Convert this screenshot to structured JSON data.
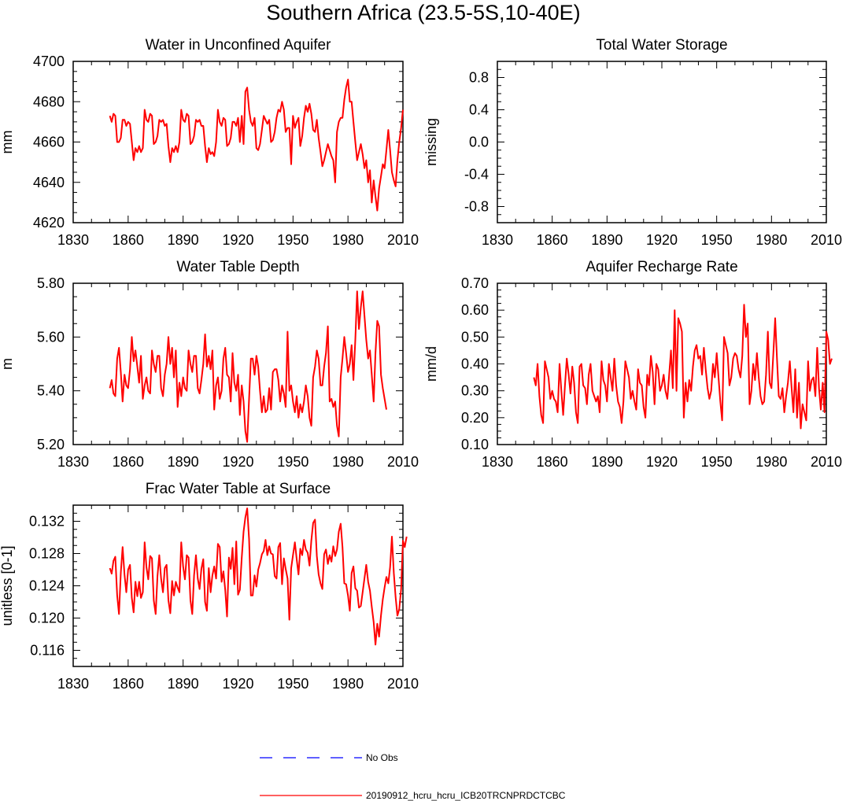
{
  "figure": {
    "title": "Southern Africa (23.5-5S,10-40E)"
  },
  "legend": {
    "entries": [
      {
        "label": "No Obs",
        "color": "#0000ff",
        "style": "dashed"
      },
      {
        "label": "20190912_hcru_hcru_ICB20TRCNPRDCTCBC",
        "color": "#ff0000",
        "style": "solid"
      }
    ]
  },
  "chart_data": [
    {
      "type": "line",
      "title": "Water in Unconfined Aquifer",
      "xlabel": "",
      "ylabel": "mm",
      "xlim": [
        1830,
        2010
      ],
      "ylim": [
        4620,
        4700
      ],
      "xticks": [
        1830,
        1860,
        1890,
        1920,
        1950,
        1980,
        2010
      ],
      "yticks": [
        4620,
        4640,
        4660,
        4680,
        4700
      ],
      "ytick_labels": [
        "4620",
        "4640",
        "4660",
        "4680",
        "4700"
      ],
      "series": [
        {
          "name": "20190912_hcru_hcru_ICB20TRCNPRDCTCBC",
          "color": "#ff0000",
          "x_start": 1850,
          "x_step": 1,
          "values": [
            4673,
            4670,
            4674,
            4673,
            4660,
            4660,
            4662,
            4671,
            4671,
            4668,
            4670,
            4669,
            4660,
            4651,
            4657,
            4655,
            4658,
            4655,
            4657,
            4676,
            4671,
            4670,
            4674,
            4673,
            4659,
            4660,
            4663,
            4671,
            4670,
            4671,
            4668,
            4669,
            4658,
            4650,
            4657,
            4655,
            4658,
            4655,
            4660,
            4676,
            4671,
            4670,
            4674,
            4673,
            4659,
            4660,
            4663,
            4671,
            4670,
            4671,
            4668,
            4668,
            4658,
            4650,
            4657,
            4654,
            4655,
            4653,
            4660,
            4676,
            4670,
            4668,
            4672,
            4671,
            4658,
            4659,
            4662,
            4670,
            4670,
            4668,
            4672,
            4660,
            4673,
            4659,
            4685,
            4687,
            4676,
            4670,
            4668,
            4672,
            4657,
            4656,
            4659,
            4666,
            4673,
            4671,
            4669,
            4671,
            4660,
            4661,
            4665,
            4672,
            4676,
            4675,
            4680,
            4676,
            4665,
            4667,
            4667,
            4649,
            4673,
            4667,
            4670,
            4672,
            4658,
            4663,
            4672,
            4678,
            4675,
            4679,
            4674,
            4666,
            4665,
            4671,
            4662,
            4655,
            4648,
            4651,
            4655,
            4659,
            4656,
            4653,
            4651,
            4640,
            4665,
            4670,
            4672,
            4672,
            4681,
            4687,
            4691,
            4680,
            4680,
            4670,
            4660,
            4651,
            4655,
            4659,
            4654,
            4647,
            4651,
            4640,
            4646,
            4630,
            4641,
            4633,
            4626,
            4637,
            4643,
            4649,
            4647,
            4656,
            4666,
            4656,
            4645,
            4641,
            4638,
            4651,
            4660,
            4667,
            4676
          ]
        }
      ]
    },
    {
      "type": "line",
      "title": "Total Water Storage",
      "xlabel": "",
      "ylabel": "missing",
      "xlim": [
        1830,
        2010
      ],
      "ylim": [
        -1.0,
        1.0
      ],
      "xticks": [
        1830,
        1860,
        1890,
        1920,
        1950,
        1980,
        2010
      ],
      "yticks": [
        -0.8,
        -0.4,
        0.0,
        0.4,
        0.8
      ],
      "ytick_labels": [
        "-0.8",
        "-0.4",
        "0.0",
        "0.4",
        "0.8"
      ],
      "series": []
    },
    {
      "type": "line",
      "title": "Water Table Depth",
      "xlabel": "",
      "ylabel": "m",
      "xlim": [
        1830,
        2010
      ],
      "ylim": [
        5.2,
        5.8
      ],
      "xticks": [
        1830,
        1860,
        1890,
        1920,
        1950,
        1980,
        2010
      ],
      "yticks": [
        5.2,
        5.4,
        5.6,
        5.8
      ],
      "ytick_labels": [
        "5.20",
        "5.40",
        "5.60",
        "5.80"
      ],
      "series": [
        {
          "name": "20190912_hcru_hcru_ICB20TRCNPRDCTCBC",
          "color": "#ff0000",
          "x_start": 1850,
          "x_step": 1,
          "values": [
            5.41,
            5.44,
            5.39,
            5.38,
            5.52,
            5.56,
            5.47,
            5.36,
            5.46,
            5.42,
            5.41,
            5.48,
            5.6,
            5.51,
            5.55,
            5.49,
            5.43,
            5.53,
            5.37,
            5.42,
            5.45,
            5.4,
            5.39,
            5.55,
            5.5,
            5.47,
            5.53,
            5.53,
            5.41,
            5.38,
            5.46,
            5.5,
            5.6,
            5.5,
            5.56,
            5.45,
            5.55,
            5.34,
            5.43,
            5.38,
            5.45,
            5.41,
            5.4,
            5.55,
            5.5,
            5.47,
            5.53,
            5.53,
            5.41,
            5.39,
            5.44,
            5.5,
            5.61,
            5.49,
            5.53,
            5.48,
            5.55,
            5.33,
            5.42,
            5.45,
            5.37,
            5.4,
            5.52,
            5.56,
            5.46,
            5.45,
            5.36,
            5.54,
            5.43,
            5.4,
            5.46,
            5.31,
            5.42,
            5.36,
            5.25,
            5.21,
            5.37,
            5.52,
            5.52,
            5.46,
            5.53,
            5.49,
            5.4,
            5.32,
            5.38,
            5.32,
            5.33,
            5.41,
            5.33,
            5.47,
            5.48,
            5.48,
            5.44,
            5.36,
            5.42,
            5.39,
            5.34,
            5.62,
            5.4,
            5.42,
            5.36,
            5.32,
            5.38,
            5.3,
            5.35,
            5.32,
            5.36,
            5.42,
            5.38,
            5.3,
            5.27,
            5.45,
            5.49,
            5.55,
            5.52,
            5.42,
            5.42,
            5.49,
            5.54,
            5.64,
            5.36,
            5.37,
            5.34,
            5.36,
            5.27,
            5.23,
            5.45,
            5.52,
            5.6,
            5.54,
            5.47,
            5.5,
            5.57,
            5.44,
            5.59,
            5.77,
            5.63,
            5.71,
            5.77,
            5.68,
            5.59,
            5.52,
            5.55,
            5.46,
            5.36,
            5.54,
            5.66,
            5.64,
            5.46,
            5.41,
            5.37,
            5.33
          ]
        }
      ]
    },
    {
      "type": "line",
      "title": "Aquifer Recharge Rate",
      "xlabel": "",
      "ylabel": "mm/d",
      "xlim": [
        1830,
        2010
      ],
      "ylim": [
        0.1,
        0.7
      ],
      "xticks": [
        1830,
        1860,
        1890,
        1920,
        1950,
        1980,
        2010
      ],
      "yticks": [
        0.1,
        0.2,
        0.3,
        0.4,
        0.5,
        0.6,
        0.7
      ],
      "ytick_labels": [
        "0.10",
        "0.20",
        "0.30",
        "0.40",
        "0.50",
        "0.60",
        "0.70"
      ],
      "series": [
        {
          "name": "20190912_hcru_hcru_ICB20TRCNPRDCTCBC",
          "color": "#ff0000",
          "x_start": 1850,
          "x_step": 1,
          "values": [
            0.35,
            0.32,
            0.4,
            0.28,
            0.21,
            0.18,
            0.41,
            0.38,
            0.35,
            0.27,
            0.3,
            0.27,
            0.26,
            0.22,
            0.4,
            0.3,
            0.21,
            0.32,
            0.42,
            0.36,
            0.29,
            0.39,
            0.33,
            0.22,
            0.18,
            0.39,
            0.4,
            0.32,
            0.31,
            0.25,
            0.36,
            0.4,
            0.3,
            0.28,
            0.26,
            0.28,
            0.22,
            0.41,
            0.34,
            0.32,
            0.26,
            0.4,
            0.35,
            0.3,
            0.42,
            0.32,
            0.26,
            0.24,
            0.18,
            0.26,
            0.41,
            0.38,
            0.35,
            0.27,
            0.3,
            0.26,
            0.23,
            0.38,
            0.33,
            0.32,
            0.24,
            0.2,
            0.36,
            0.32,
            0.43,
            0.37,
            0.25,
            0.4,
            0.38,
            0.3,
            0.32,
            0.36,
            0.3,
            0.27,
            0.36,
            0.45,
            0.31,
            0.6,
            0.3,
            0.57,
            0.55,
            0.52,
            0.2,
            0.33,
            0.26,
            0.34,
            0.3,
            0.39,
            0.45,
            0.47,
            0.42,
            0.43,
            0.36,
            0.46,
            0.38,
            0.31,
            0.27,
            0.3,
            0.4,
            0.35,
            0.44,
            0.35,
            0.26,
            0.19,
            0.5,
            0.47,
            0.44,
            0.32,
            0.35,
            0.42,
            0.44,
            0.43,
            0.38,
            0.35,
            0.43,
            0.62,
            0.5,
            0.55,
            0.25,
            0.3,
            0.4,
            0.34,
            0.44,
            0.35,
            0.28,
            0.25,
            0.26,
            0.36,
            0.52,
            0.33,
            0.31,
            0.44,
            0.57,
            0.42,
            0.28,
            0.27,
            0.31,
            0.22,
            0.28,
            0.33,
            0.41,
            0.31,
            0.22,
            0.38,
            0.2,
            0.33,
            0.16,
            0.25,
            0.22,
            0.19,
            0.41,
            0.3,
            0.34,
            0.35,
            0.28,
            0.46,
            0.31,
            0.23,
            0.33,
            0.22,
            0.52,
            0.49,
            0.4,
            0.42
          ]
        }
      ]
    },
    {
      "type": "line",
      "title": "Frac Water Table at Surface",
      "xlabel": "",
      "ylabel": "unitless [0-1]",
      "xlim": [
        1830,
        2010
      ],
      "ylim": [
        0.114,
        0.134
      ],
      "xticks": [
        1830,
        1860,
        1890,
        1920,
        1950,
        1980,
        2010
      ],
      "yticks": [
        0.116,
        0.12,
        0.124,
        0.128,
        0.132
      ],
      "ytick_labels": [
        "0.116",
        "0.120",
        "0.124",
        "0.128",
        "0.132"
      ],
      "series": [
        {
          "name": "20190912_hcru_hcru_ICB20TRCNPRDCTCBC",
          "color": "#ff0000",
          "x_start": 1850,
          "x_step": 1,
          "values": [
            0.1262,
            0.1255,
            0.1271,
            0.1276,
            0.1228,
            0.1205,
            0.1256,
            0.1288,
            0.1254,
            0.1232,
            0.126,
            0.1266,
            0.1225,
            0.1207,
            0.1245,
            0.1227,
            0.1245,
            0.1225,
            0.1232,
            0.1294,
            0.1263,
            0.1248,
            0.1277,
            0.1274,
            0.1222,
            0.1205,
            0.1252,
            0.1278,
            0.1249,
            0.1232,
            0.1262,
            0.1266,
            0.1222,
            0.1206,
            0.1246,
            0.1228,
            0.1245,
            0.1238,
            0.1232,
            0.1294,
            0.1264,
            0.1248,
            0.1278,
            0.1275,
            0.1222,
            0.1205,
            0.1253,
            0.1278,
            0.1249,
            0.1236,
            0.1261,
            0.1273,
            0.122,
            0.1209,
            0.1262,
            0.1232,
            0.1253,
            0.1264,
            0.1249,
            0.1292,
            0.1288,
            0.1245,
            0.1258,
            0.1235,
            0.1202,
            0.1275,
            0.1261,
            0.1287,
            0.1242,
            0.1295,
            0.1229,
            0.1235,
            0.1275,
            0.1307,
            0.1325,
            0.1336,
            0.1298,
            0.1228,
            0.1228,
            0.1253,
            0.1239,
            0.126,
            0.1268,
            0.1279,
            0.1283,
            0.1297,
            0.1278,
            0.1289,
            0.128,
            0.1279,
            0.1252,
            0.1249,
            0.1288,
            0.1293,
            0.1242,
            0.1274,
            0.1261,
            0.1249,
            0.1198,
            0.1262,
            0.1278,
            0.1294,
            0.1273,
            0.1254,
            0.1286,
            0.1278,
            0.1297,
            0.1285,
            0.1281,
            0.1265,
            0.1296,
            0.1318,
            0.1322,
            0.1277,
            0.1254,
            0.1243,
            0.1236,
            0.1279,
            0.1285,
            0.1267,
            0.1278,
            0.127,
            0.1289,
            0.1277,
            0.1285,
            0.1307,
            0.1317,
            0.1288,
            0.1243,
            0.1242,
            0.1228,
            0.1209,
            0.1256,
            0.1264,
            0.1237,
            0.1234,
            0.1213,
            0.1215,
            0.1232,
            0.1249,
            0.1266,
            0.1245,
            0.1234,
            0.1214,
            0.1195,
            0.1167,
            0.1193,
            0.1177,
            0.1203,
            0.1223,
            0.1238,
            0.1251,
            0.1243,
            0.1263,
            0.1301,
            0.1256,
            0.1226,
            0.1203,
            0.1211,
            0.1236,
            0.1296,
            0.1288,
            0.1301
          ]
        }
      ]
    }
  ]
}
